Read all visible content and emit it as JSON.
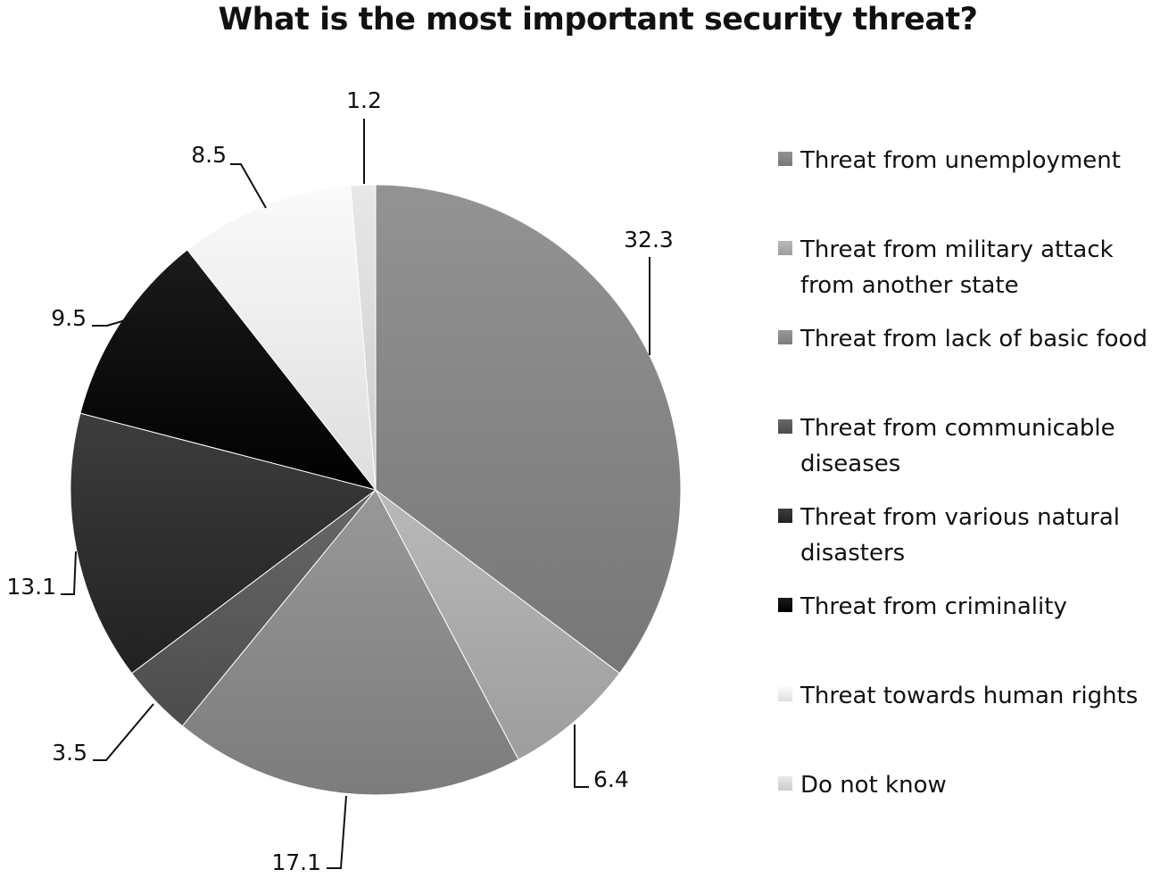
{
  "chart_data": {
    "type": "pie",
    "title": "What is the most important security threat?",
    "slices": [
      {
        "label": "Threat from unemployment",
        "value": 32.3,
        "color": "#858585"
      },
      {
        "label": "Threat from military attack from another state",
        "value": 6.4,
        "color": "#ababab"
      },
      {
        "label": "Threat from lack of basic food",
        "value": 17.1,
        "color": "#8a8a8a"
      },
      {
        "label": "Threat from communicable diseases",
        "value": 3.5,
        "color": "#5a5a5a"
      },
      {
        "label": "Threat from various natural disasters",
        "value": 13.1,
        "color": "#2f2f2f"
      },
      {
        "label": "Threat from criminality",
        "value": 9.5,
        "color": "#0d0d0d"
      },
      {
        "label": "Threat towards human rights",
        "value": 8.5,
        "color": "#ececec"
      },
      {
        "label": "Do not know",
        "value": 1.2,
        "color": "#dadada"
      }
    ],
    "data_labels": [
      "32.3",
      "6.4",
      "17.1",
      "3.5",
      "13.1",
      "9.5",
      "8.5",
      "1.2"
    ],
    "legend": {
      "position": "right",
      "entries": [
        "Threat from unemployment",
        "Threat from military attack\nfrom another state",
        "Threat from lack of basic food",
        "Threat from communicable\ndiseases",
        "Threat from various natural\ndisasters",
        "Threat from criminality",
        "Threat towards human rights",
        "Do not know"
      ]
    }
  }
}
